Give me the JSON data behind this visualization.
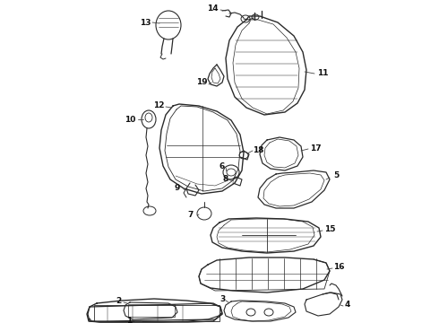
{
  "background_color": "#ffffff",
  "line_color": "#2a2a2a",
  "fig_width": 4.9,
  "fig_height": 3.6,
  "dpi": 100
}
